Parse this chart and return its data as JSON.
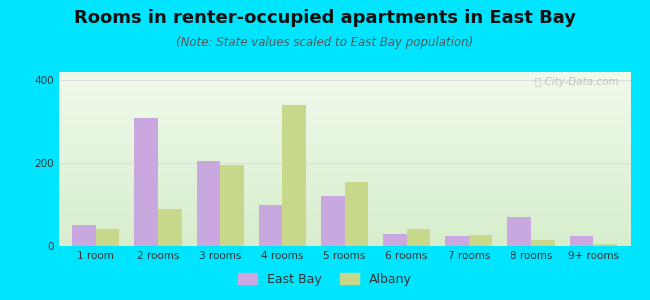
{
  "title": "Rooms in renter-occupied apartments in East Bay",
  "subtitle": "(Note: State values scaled to East Bay population)",
  "categories": [
    "1 room",
    "2 rooms",
    "3 rooms",
    "4 rooms",
    "5 rooms",
    "6 rooms",
    "7 rooms",
    "8 rooms",
    "9+ rooms"
  ],
  "east_bay": [
    50,
    310,
    205,
    100,
    120,
    30,
    25,
    70,
    25
  ],
  "albany": [
    40,
    90,
    195,
    340,
    155,
    42,
    26,
    15,
    5
  ],
  "east_bay_color": "#c9a8e0",
  "albany_color": "#c8d88a",
  "ylim": [
    0,
    420
  ],
  "yticks": [
    0,
    200,
    400
  ],
  "bar_width": 0.38,
  "background_outer": "#00e5ff",
  "grid_color": "#dddddd",
  "title_fontsize": 13,
  "subtitle_fontsize": 8.5,
  "tick_fontsize": 7.5,
  "legend_fontsize": 9,
  "watermark_text": "ⓘ City-Data.com",
  "watermark_color": "#bbbbbb"
}
